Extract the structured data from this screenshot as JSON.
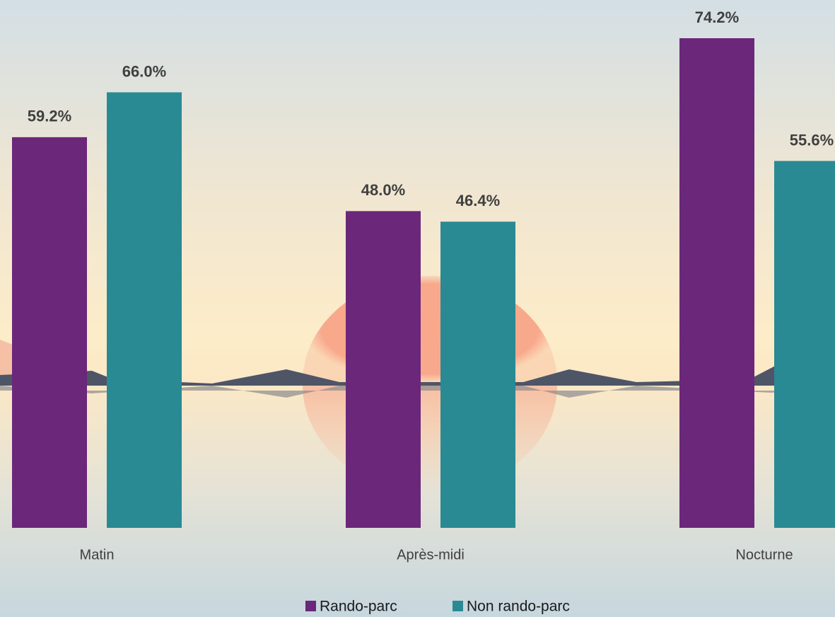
{
  "chart_data": {
    "type": "bar",
    "categories": [
      "Matin",
      "Après-midi",
      "Nocturne"
    ],
    "series": [
      {
        "name": "Rando-parc",
        "color": "#6b2779",
        "values": [
          59.2,
          48.0,
          74.2
        ],
        "value_labels": [
          "59.2%",
          "48.0%",
          "74.2%"
        ]
      },
      {
        "name": "Non rando-parc",
        "color": "#2a8a93",
        "values": [
          66.0,
          46.4,
          55.6
        ],
        "value_labels": [
          "66.0%",
          "46.4%",
          "55.6%"
        ]
      }
    ]
  }
}
